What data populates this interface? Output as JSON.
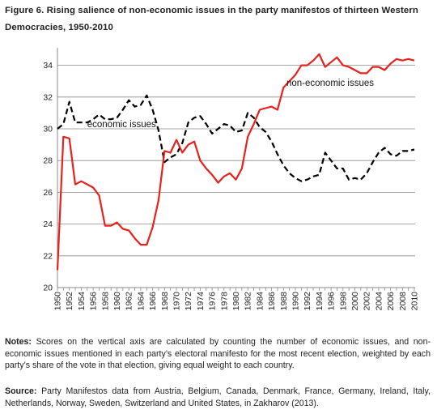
{
  "figure": {
    "title": "Figure 6. Rising salience of non-economic issues in the party manifestos of thirteen Western Democracies, 1950-2010"
  },
  "chart_data": {
    "type": "line",
    "ylim": [
      20,
      35
    ],
    "yticks": [
      "20",
      "22",
      "24",
      "26",
      "28",
      "30",
      "32",
      "34"
    ],
    "grid": "horizontal",
    "x": [
      1950,
      1951,
      1952,
      1953,
      1954,
      1955,
      1956,
      1957,
      1958,
      1959,
      1960,
      1961,
      1962,
      1963,
      1964,
      1965,
      1966,
      1967,
      1968,
      1969,
      1970,
      1971,
      1972,
      1973,
      1974,
      1975,
      1976,
      1977,
      1978,
      1979,
      1980,
      1981,
      1982,
      1983,
      1984,
      1985,
      1986,
      1987,
      1988,
      1989,
      1990,
      1991,
      1992,
      1993,
      1994,
      1995,
      1996,
      1997,
      1998,
      1999,
      2000,
      2001,
      2002,
      2003,
      2004,
      2005,
      2006,
      2007,
      2008,
      2009,
      2010
    ],
    "xtick_labels": [
      "1950",
      "1952",
      "1954",
      "1956",
      "1958",
      "1960",
      "1962",
      "1964",
      "1966",
      "1968",
      "1970",
      "1972",
      "1974",
      "1976",
      "1978",
      "1980",
      "1982",
      "1984",
      "1986",
      "1988",
      "1990",
      "1992",
      "1994",
      "1996",
      "1998",
      "2000",
      "2002",
      "2004",
      "2006",
      "2008",
      "2010"
    ],
    "series": [
      {
        "name": "economic issues",
        "color": "#000000",
        "style": "dashed",
        "values": [
          30.0,
          30.3,
          31.7,
          30.4,
          30.4,
          30.4,
          30.6,
          30.9,
          30.6,
          30.6,
          30.7,
          31.2,
          31.8,
          31.4,
          31.5,
          32.1,
          31.2,
          29.9,
          27.9,
          28.2,
          28.4,
          29.1,
          30.4,
          30.7,
          30.8,
          30.3,
          29.7,
          30.0,
          30.3,
          30.2,
          29.8,
          29.9,
          31.0,
          30.7,
          30.1,
          29.8,
          29.2,
          28.4,
          27.7,
          27.2,
          26.9,
          26.7,
          26.8,
          27.0,
          27.1,
          28.5,
          28.0,
          27.5,
          27.5,
          26.8,
          26.9,
          26.8,
          27.2,
          27.9,
          28.5,
          28.8,
          28.4,
          28.3,
          28.6,
          28.6,
          28.7
        ]
      },
      {
        "name": "non-economic issues",
        "color": "#e8211d",
        "style": "solid",
        "values": [
          21.1,
          29.5,
          29.4,
          26.5,
          26.7,
          26.5,
          26.3,
          25.8,
          23.9,
          23.9,
          24.1,
          23.7,
          23.6,
          23.1,
          22.7,
          22.7,
          23.8,
          25.5,
          28.6,
          28.5,
          29.3,
          28.5,
          29.0,
          29.2,
          28.0,
          27.5,
          27.1,
          26.6,
          27.0,
          27.2,
          26.8,
          27.5,
          29.5,
          30.3,
          31.2,
          31.3,
          31.4,
          31.2,
          32.6,
          33.0,
          33.4,
          34.0,
          34.0,
          34.3,
          34.7,
          33.9,
          34.2,
          34.5,
          34.0,
          33.9,
          33.7,
          33.5,
          33.5,
          33.9,
          33.9,
          33.7,
          34.1,
          34.4,
          34.3,
          34.4,
          34.3
        ]
      }
    ],
    "annotations": [
      {
        "text": "economic issues",
        "x": 1955,
        "y": 30.1
      },
      {
        "text": "non-economic issues",
        "x": 1988.5,
        "y": 32.7
      }
    ]
  },
  "notes": {
    "label": "Notes:",
    "text": " Scores on the vertical axis are calculated by counting the number of economic issues, and non-economic issues mentioned in each party’s electoral manifesto for the most recent election, weighted by each party’s share of the vote in that election, giving equal weight to each country."
  },
  "source": {
    "label": "Source:",
    "text": " Party Manifestos data from Austria, Belgium, Canada, Denmark, France, Germany, Ireland, Italy, Netherlands, Norway, Sweden, Switzerland and United States, in Zakharov (2013)."
  }
}
